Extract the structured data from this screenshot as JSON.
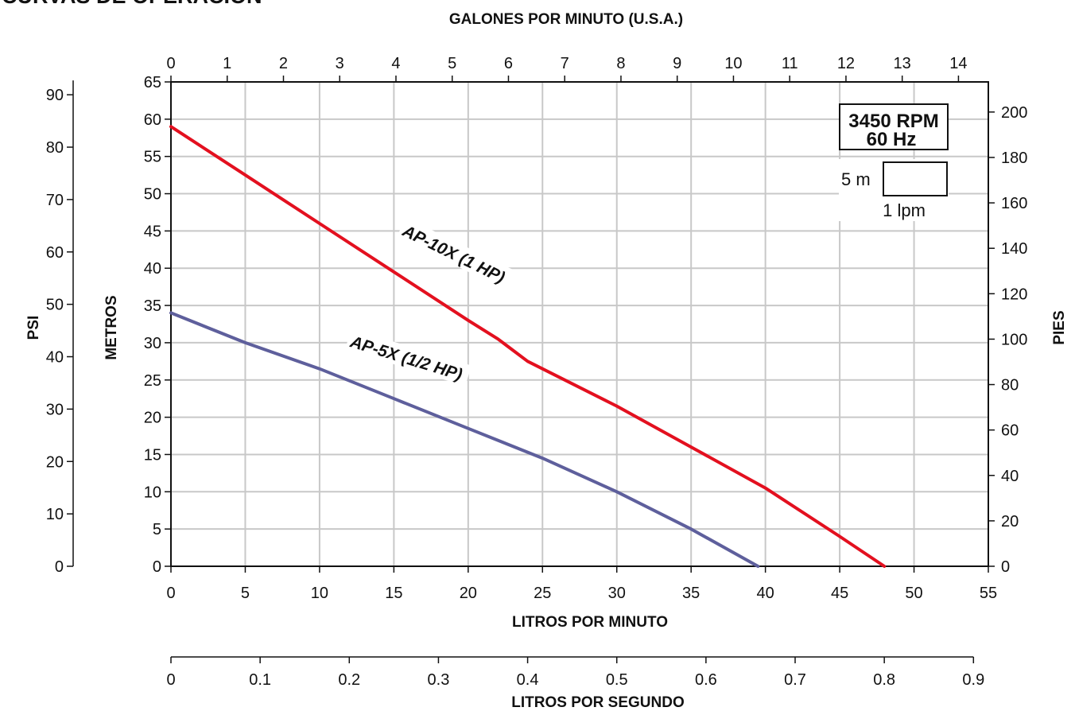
{
  "chart_data": {
    "type": "line",
    "title": "CURVAS DE OPERACIÓN",
    "top_axis": {
      "label": "GALONES POR MINUTO (U.S.A.)",
      "ticks": [
        "0",
        "1",
        "2",
        "3",
        "4",
        "5",
        "6",
        "7",
        "8",
        "9",
        "10",
        "11",
        "12",
        "13",
        "14"
      ]
    },
    "x_axis": {
      "label": "LITROS POR MINUTO",
      "range": [
        0,
        55
      ],
      "ticks": [
        "0",
        "5",
        "10",
        "15",
        "20",
        "25",
        "30",
        "35",
        "40",
        "45",
        "50",
        "55"
      ]
    },
    "x2_axis": {
      "label": "LITROS POR SEGUNDO",
      "ticks": [
        "0",
        "0.1",
        "0.2",
        "0.3",
        "0.4",
        "0.5",
        "0.6",
        "0.7",
        "0.8",
        "0.9"
      ]
    },
    "y_axis": {
      "label": "METROS",
      "range": [
        0,
        65
      ],
      "ticks": [
        "0",
        "5",
        "10",
        "15",
        "20",
        "25",
        "30",
        "35",
        "40",
        "45",
        "50",
        "55",
        "60",
        "65"
      ]
    },
    "psi_axis": {
      "label": "PSI",
      "ticks": [
        "0",
        "10",
        "20",
        "30",
        "40",
        "50",
        "60",
        "70",
        "80",
        "90"
      ]
    },
    "right_axis": {
      "label": "PIES",
      "ticks": [
        "0",
        "20",
        "40",
        "60",
        "80",
        "100",
        "120",
        "140",
        "160",
        "180",
        "200"
      ]
    },
    "grid": true,
    "badge": {
      "line1": "3450 RPM",
      "line2": "60 Hz"
    },
    "scale_box": {
      "height_label": "5 m",
      "width_label": "1 lpm"
    },
    "series": [
      {
        "name": "AP-10X (1 HP)",
        "color": "#e3101f",
        "x": [
          0,
          5,
          10,
          15,
          20,
          22,
          24,
          30,
          35,
          40,
          45,
          48
        ],
        "y": [
          59,
          52.5,
          46,
          39.5,
          33,
          30.5,
          27.5,
          21.5,
          16,
          10.5,
          4,
          0
        ]
      },
      {
        "name": "AP-5X (1/2 HP)",
        "color": "#5e5f9c",
        "x": [
          0,
          5,
          10,
          15,
          20,
          25,
          30,
          35,
          39.5
        ],
        "y": [
          34,
          30,
          26.5,
          22.5,
          18.5,
          14.5,
          10,
          5,
          0
        ]
      }
    ]
  }
}
